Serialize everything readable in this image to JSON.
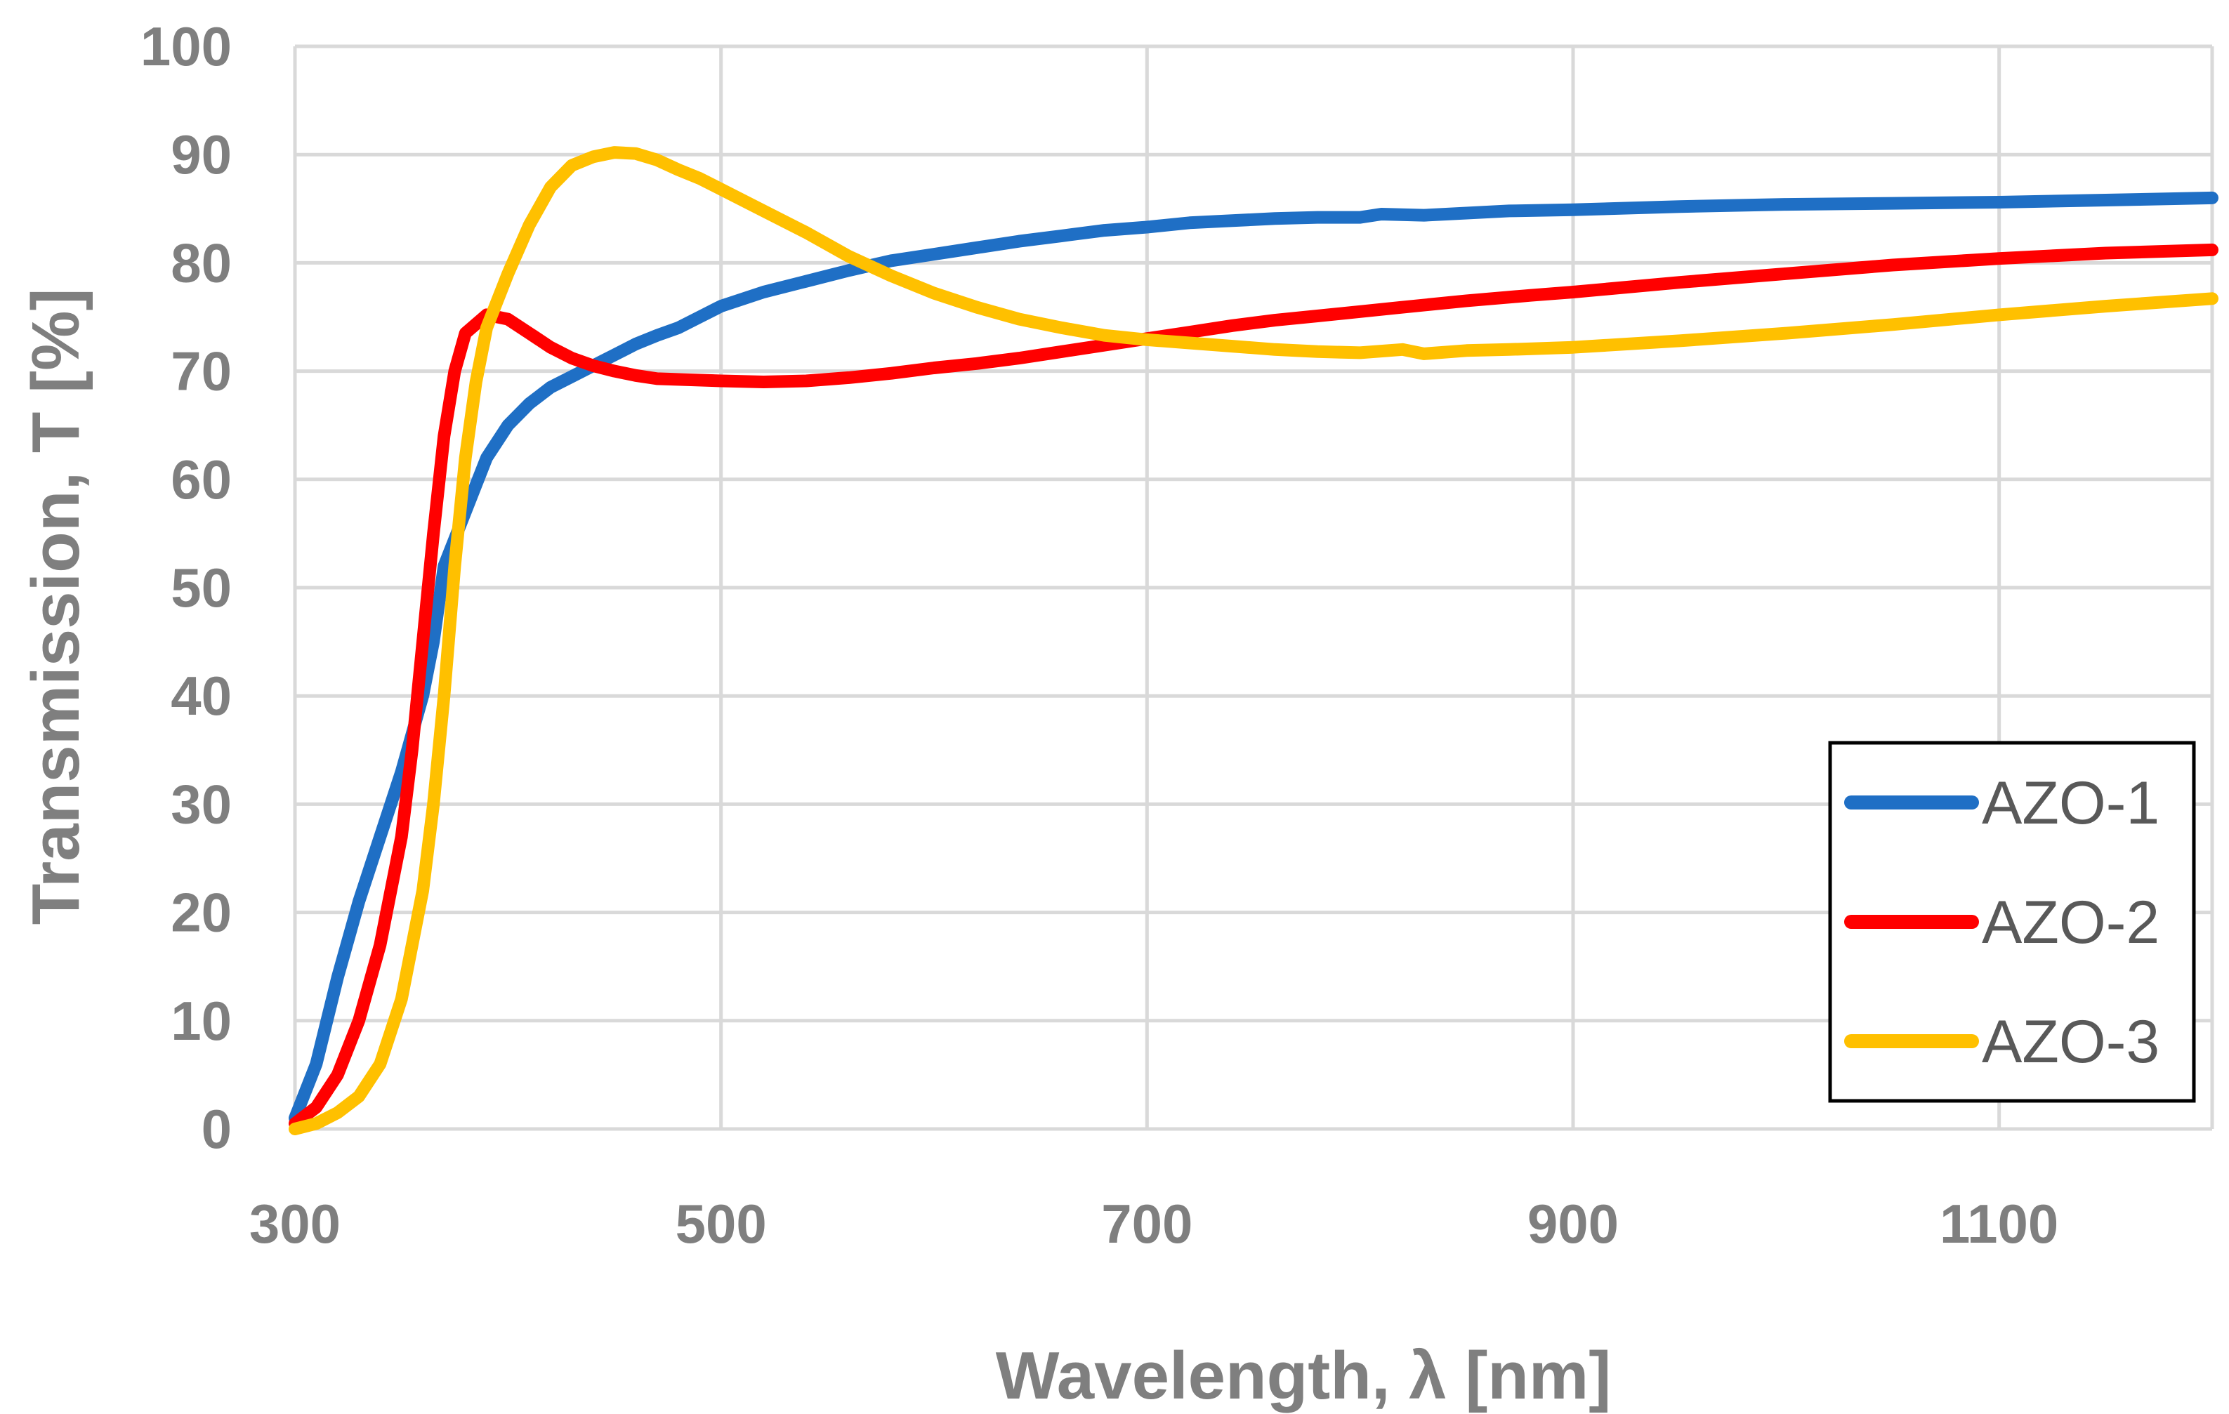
{
  "chart_data": {
    "type": "line",
    "title": "",
    "xlabel": "Wavelength, λ [nm]",
    "ylabel": "Transmission, T [%]",
    "xlim": [
      300,
      1200
    ],
    "ylim": [
      0,
      100
    ],
    "x_ticks": [
      300,
      500,
      700,
      900,
      1100
    ],
    "y_ticks": [
      0,
      10,
      20,
      30,
      40,
      50,
      60,
      70,
      80,
      90,
      100
    ],
    "grid": true,
    "legend_position": "bottom-right",
    "series": [
      {
        "name": "AZO-1",
        "color": "#1f6fc5",
        "points": [
          [
            300,
            1
          ],
          [
            310,
            6
          ],
          [
            320,
            14
          ],
          [
            330,
            21
          ],
          [
            340,
            27
          ],
          [
            350,
            33
          ],
          [
            360,
            40
          ],
          [
            365,
            45
          ],
          [
            370,
            52
          ],
          [
            380,
            57
          ],
          [
            390,
            62
          ],
          [
            400,
            65
          ],
          [
            410,
            67
          ],
          [
            420,
            68.5
          ],
          [
            430,
            69.5
          ],
          [
            440,
            70.5
          ],
          [
            450,
            71.5
          ],
          [
            460,
            72.5
          ],
          [
            470,
            73.3
          ],
          [
            480,
            74
          ],
          [
            490,
            75
          ],
          [
            500,
            76
          ],
          [
            520,
            77.3
          ],
          [
            540,
            78.3
          ],
          [
            560,
            79.3
          ],
          [
            580,
            80.2
          ],
          [
            600,
            80.8
          ],
          [
            620,
            81.4
          ],
          [
            640,
            82
          ],
          [
            660,
            82.5
          ],
          [
            680,
            83
          ],
          [
            700,
            83.3
          ],
          [
            720,
            83.7
          ],
          [
            740,
            83.9
          ],
          [
            760,
            84.1
          ],
          [
            780,
            84.2
          ],
          [
            800,
            84.2
          ],
          [
            810,
            84.5
          ],
          [
            830,
            84.4
          ],
          [
            850,
            84.6
          ],
          [
            870,
            84.8
          ],
          [
            900,
            84.9
          ],
          [
            950,
            85.2
          ],
          [
            1000,
            85.4
          ],
          [
            1050,
            85.5
          ],
          [
            1100,
            85.6
          ],
          [
            1150,
            85.8
          ],
          [
            1200,
            86
          ]
        ]
      },
      {
        "name": "AZO-2",
        "color": "#ff0000",
        "points": [
          [
            300,
            0.5
          ],
          [
            310,
            2
          ],
          [
            320,
            5
          ],
          [
            330,
            10
          ],
          [
            340,
            17
          ],
          [
            350,
            27
          ],
          [
            355,
            35
          ],
          [
            360,
            45
          ],
          [
            365,
            55
          ],
          [
            370,
            64
          ],
          [
            375,
            70
          ],
          [
            380,
            73.5
          ],
          [
            390,
            75.2
          ],
          [
            400,
            74.8
          ],
          [
            410,
            73.5
          ],
          [
            420,
            72.2
          ],
          [
            430,
            71.2
          ],
          [
            440,
            70.5
          ],
          [
            450,
            70
          ],
          [
            460,
            69.6
          ],
          [
            470,
            69.3
          ],
          [
            500,
            69.1
          ],
          [
            520,
            69
          ],
          [
            540,
            69.1
          ],
          [
            560,
            69.4
          ],
          [
            580,
            69.8
          ],
          [
            600,
            70.3
          ],
          [
            620,
            70.7
          ],
          [
            640,
            71.2
          ],
          [
            660,
            71.8
          ],
          [
            680,
            72.4
          ],
          [
            700,
            73
          ],
          [
            720,
            73.6
          ],
          [
            740,
            74.2
          ],
          [
            760,
            74.7
          ],
          [
            780,
            75.1
          ],
          [
            800,
            75.5
          ],
          [
            820,
            75.9
          ],
          [
            850,
            76.5
          ],
          [
            880,
            77
          ],
          [
            900,
            77.3
          ],
          [
            950,
            78.2
          ],
          [
            1000,
            79
          ],
          [
            1050,
            79.8
          ],
          [
            1100,
            80.4
          ],
          [
            1150,
            80.9
          ],
          [
            1200,
            81.2
          ]
        ]
      },
      {
        "name": "AZO-3",
        "color": "#ffc000",
        "points": [
          [
            300,
            0
          ],
          [
            310,
            0.5
          ],
          [
            320,
            1.5
          ],
          [
            330,
            3
          ],
          [
            340,
            6
          ],
          [
            350,
            12
          ],
          [
            360,
            22
          ],
          [
            365,
            30
          ],
          [
            370,
            40
          ],
          [
            375,
            52
          ],
          [
            380,
            62
          ],
          [
            385,
            69
          ],
          [
            390,
            74
          ],
          [
            400,
            79
          ],
          [
            410,
            83.5
          ],
          [
            420,
            87
          ],
          [
            430,
            89
          ],
          [
            440,
            89.8
          ],
          [
            450,
            90.2
          ],
          [
            460,
            90.1
          ],
          [
            470,
            89.5
          ],
          [
            480,
            88.6
          ],
          [
            490,
            87.8
          ],
          [
            500,
            86.8
          ],
          [
            520,
            84.8
          ],
          [
            540,
            82.8
          ],
          [
            560,
            80.6
          ],
          [
            580,
            78.8
          ],
          [
            600,
            77.2
          ],
          [
            620,
            75.9
          ],
          [
            640,
            74.8
          ],
          [
            660,
            74
          ],
          [
            680,
            73.3
          ],
          [
            700,
            72.9
          ],
          [
            720,
            72.6
          ],
          [
            740,
            72.3
          ],
          [
            760,
            72
          ],
          [
            780,
            71.8
          ],
          [
            800,
            71.7
          ],
          [
            820,
            72
          ],
          [
            830,
            71.6
          ],
          [
            850,
            71.9
          ],
          [
            870,
            72
          ],
          [
            900,
            72.2
          ],
          [
            950,
            72.8
          ],
          [
            1000,
            73.5
          ],
          [
            1050,
            74.3
          ],
          [
            1100,
            75.2
          ],
          [
            1150,
            76
          ],
          [
            1200,
            76.7
          ]
        ]
      }
    ]
  }
}
